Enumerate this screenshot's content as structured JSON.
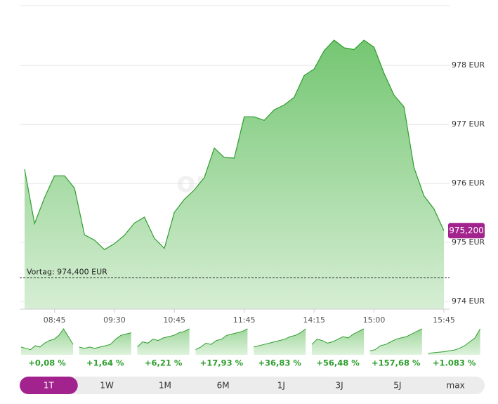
{
  "chart_data": {
    "type": "area",
    "watermark": "onvista",
    "categories": [
      null,
      null,
      null,
      "08:45",
      null,
      null,
      null,
      null,
      null,
      "09:30",
      null,
      null,
      null,
      null,
      null,
      "10:45",
      null,
      null,
      null,
      null,
      null,
      null,
      "11:45",
      null,
      null,
      null,
      null,
      null,
      null,
      "14:15",
      null,
      null,
      null,
      null,
      null,
      "15:00",
      null,
      null,
      null,
      null,
      null,
      null,
      "15:45"
    ],
    "series": [
      {
        "color": "#2e9e2e",
        "values": [
          976.24,
          975.32,
          975.76,
          976.13,
          976.13,
          975.92,
          975.13,
          975.04,
          974.88,
          974.98,
          975.12,
          975.33,
          975.43,
          975.07,
          974.9,
          975.51,
          975.73,
          975.89,
          976.1,
          976.6,
          976.44,
          976.43,
          977.13,
          977.13,
          977.07,
          977.25,
          977.33,
          977.46,
          977.83,
          977.94,
          978.25,
          978.43,
          978.3,
          978.27,
          978.43,
          978.31,
          977.87,
          977.5,
          977.3,
          976.27,
          975.79,
          975.57,
          975.2
        ]
      }
    ],
    "ylim": [
      973.87,
      979.05
    ],
    "yticks": [
      {
        "value": 974,
        "label": "974 EUR"
      },
      {
        "value": 975,
        "label": "975 EUR"
      },
      {
        "value": 976,
        "label": "976 EUR"
      },
      {
        "value": 977,
        "label": "977 EUR"
      },
      {
        "value": 978,
        "label": "978 EUR"
      }
    ],
    "grid": true,
    "reference": {
      "value": 974.4,
      "label": "Vortag: 974,400 EUR"
    },
    "last_price": {
      "value": 975.2,
      "label": "975,200"
    },
    "spark_ylim": [
      0,
      100
    ],
    "periods": [
      {
        "label": "1T",
        "change": "+0,08 %",
        "spark": [
          30,
          25,
          20,
          35,
          30,
          45,
          55,
          60,
          75,
          100,
          70,
          40
        ],
        "active": true
      },
      {
        "label": "1W",
        "change": "+1,64 %",
        "spark": [
          30,
          25,
          30,
          25,
          30,
          35,
          40,
          60,
          75,
          80,
          85
        ]
      },
      {
        "label": "1M",
        "change": "+6,21 %",
        "spark": [
          30,
          50,
          45,
          60,
          55,
          65,
          70,
          75,
          85,
          90,
          100
        ]
      },
      {
        "label": "6M",
        "change": "+17,93 %",
        "spark": [
          20,
          30,
          45,
          40,
          55,
          60,
          75,
          80,
          85,
          90,
          100
        ]
      },
      {
        "label": "1J",
        "change": "+36,83 %",
        "spark": [
          30,
          35,
          40,
          45,
          50,
          55,
          60,
          70,
          75,
          85,
          100
        ]
      },
      {
        "label": "3J",
        "change": "+56,48 %",
        "spark": [
          40,
          60,
          55,
          45,
          50,
          60,
          70,
          65,
          80,
          90,
          100
        ]
      },
      {
        "label": "5J",
        "change": "+157,68 %",
        "spark": [
          15,
          20,
          35,
          40,
          50,
          60,
          65,
          70,
          80,
          90,
          100
        ]
      },
      {
        "label": "max",
        "change": "+1.083 %",
        "spark": [
          5,
          8,
          10,
          12,
          15,
          18,
          25,
          35,
          50,
          65,
          100
        ]
      }
    ]
  }
}
